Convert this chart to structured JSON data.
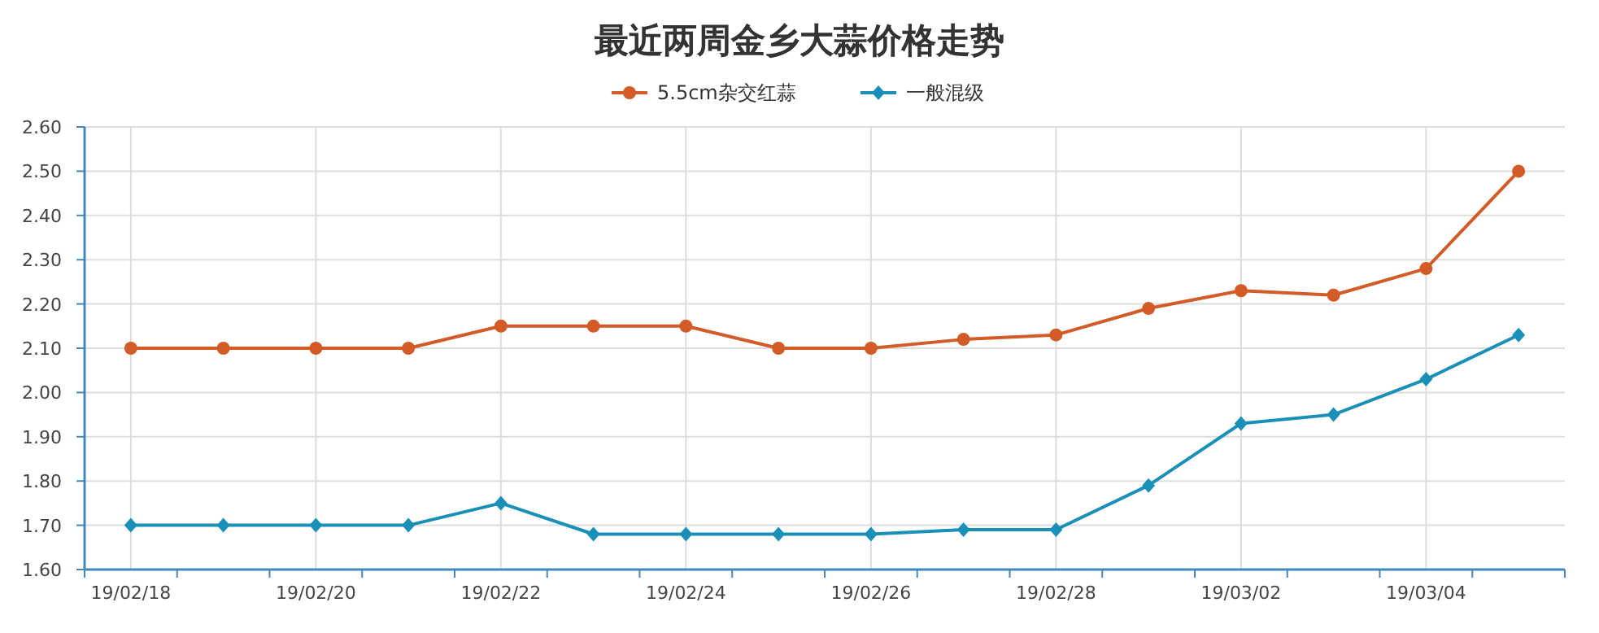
{
  "chart_data": {
    "type": "line",
    "title": "最近两周金乡大蒜价格走势",
    "categories": [
      "19/02/18",
      null,
      "19/02/20",
      null,
      "19/02/22",
      null,
      "19/02/24",
      null,
      "19/02/26",
      null,
      "19/02/28",
      null,
      "19/03/02",
      null,
      "19/03/04",
      null
    ],
    "series": [
      {
        "name": "5.5cm杂交红蒜",
        "color": "#d35b27",
        "marker": "circle",
        "values": [
          2.1,
          2.1,
          2.1,
          2.1,
          2.15,
          2.15,
          2.15,
          2.1,
          2.1,
          2.12,
          2.13,
          2.19,
          2.23,
          2.22,
          2.28,
          2.5
        ]
      },
      {
        "name": "一般混级",
        "color": "#1a8fb8",
        "marker": "diamond",
        "values": [
          1.7,
          1.7,
          1.7,
          1.7,
          1.75,
          1.68,
          1.68,
          1.68,
          1.68,
          1.69,
          1.69,
          1.79,
          1.93,
          1.95,
          2.03,
          2.13
        ]
      }
    ],
    "ylim": [
      1.6,
      2.6
    ],
    "yticks": [
      {
        "value": 1.6,
        "label": "1.60"
      },
      {
        "value": 1.7,
        "label": "1.70"
      },
      {
        "value": 1.8,
        "label": "1.80"
      },
      {
        "value": 1.9,
        "label": "1.90"
      },
      {
        "value": 2.0,
        "label": "2.00"
      },
      {
        "value": 2.1,
        "label": "2.10"
      },
      {
        "value": 2.2,
        "label": "2.20"
      },
      {
        "value": 2.3,
        "label": "2.30"
      },
      {
        "value": 2.4,
        "label": "2.40"
      },
      {
        "value": 2.5,
        "label": "2.50"
      },
      {
        "value": 2.6,
        "label": "2.60"
      }
    ],
    "grid": true,
    "legend": "top",
    "line_style": "solid"
  }
}
